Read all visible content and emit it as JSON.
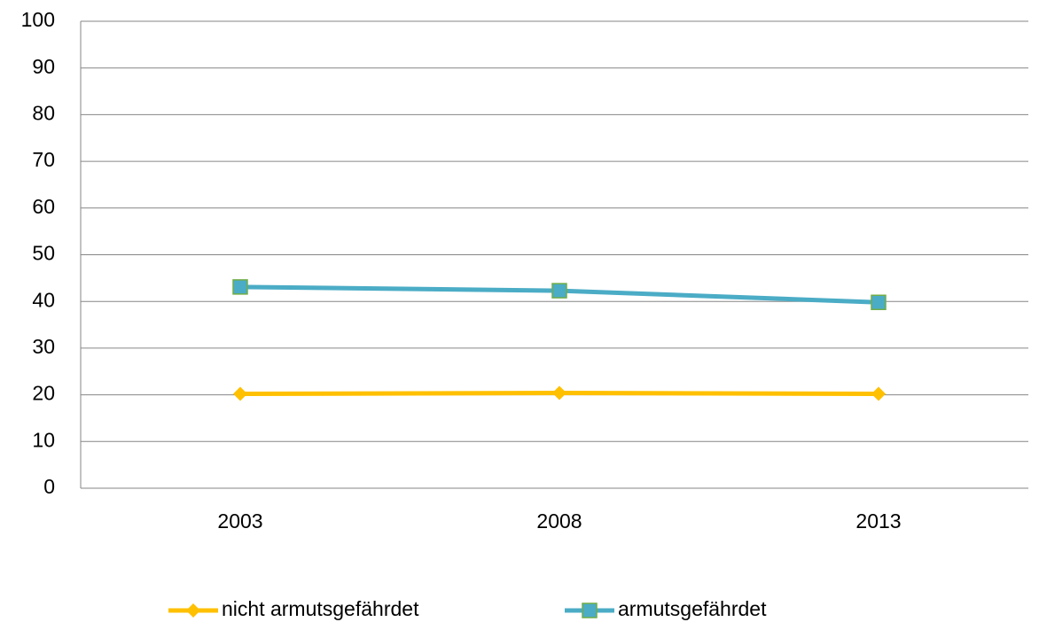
{
  "chart_data": {
    "type": "line",
    "categories": [
      "2003",
      "2008",
      "2013"
    ],
    "series": [
      {
        "name": "nicht armutsgefährdet",
        "color": "#FFC000",
        "marker": "diamond",
        "values": [
          20.2,
          20.4,
          20.2
        ]
      },
      {
        "name": "armutsgefährdet",
        "color": "#4BACC6",
        "marker": "square",
        "values": [
          43.1,
          42.3,
          39.8
        ]
      }
    ],
    "ylim": [
      0,
      100
    ],
    "yticks": [
      0,
      10,
      20,
      30,
      40,
      50,
      60,
      70,
      80,
      90,
      100
    ],
    "grid": true,
    "legend": "bottom"
  }
}
